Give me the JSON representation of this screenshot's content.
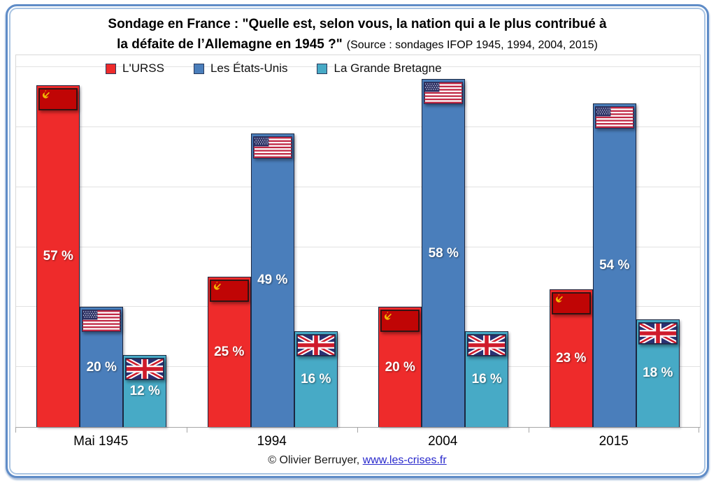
{
  "title": {
    "line1": "Sondage en France : \"Quelle est, selon vous, la nation qui a le plus contribué à",
    "line2": "la défaite de l’Allemagne en 1945 ?\"",
    "source": "(Source : sondages IFOP 1945, 1994, 2004, 2015)"
  },
  "legend": {
    "items": [
      {
        "label": "L'URSS",
        "color": "#ee2b2b"
      },
      {
        "label": "Les États-Unis",
        "color": "#4a7ebb"
      },
      {
        "label": "La Grande Bretagne",
        "color": "#47aac6"
      }
    ]
  },
  "colors": {
    "urss": "#ee2b2b",
    "usa": "#4a7ebb",
    "gb": "#47aac6",
    "bar_border": "#1c2740",
    "gridline": "#e2e2e2",
    "axis": "#a6a6a6",
    "frame_border": "#5f8cc7",
    "link": "#2929cc"
  },
  "plot": {
    "groups": [
      {
        "category": "Mai 1945",
        "bars": [
          {
            "series": "L'URSS",
            "value": 57,
            "label": "57 %"
          },
          {
            "series": "Les États-Unis",
            "value": 20,
            "label": "20 %"
          },
          {
            "series": "La Grande Bretagne",
            "value": 12,
            "label": "12 %"
          }
        ]
      },
      {
        "category": "1994",
        "bars": [
          {
            "series": "L'URSS",
            "value": 25,
            "label": "25 %"
          },
          {
            "series": "Les États-Unis",
            "value": 49,
            "label": "49 %"
          },
          {
            "series": "La Grande Bretagne",
            "value": 16,
            "label": "16 %"
          }
        ]
      },
      {
        "category": "2004",
        "bars": [
          {
            "series": "L'URSS",
            "value": 20,
            "label": "20 %"
          },
          {
            "series": "Les États-Unis",
            "value": 58,
            "label": "58 %"
          },
          {
            "series": "La Grande Bretagne",
            "value": 16,
            "label": "16 %"
          }
        ]
      },
      {
        "category": "2015",
        "bars": [
          {
            "series": "L'URSS",
            "value": 23,
            "label": "23 %"
          },
          {
            "series": "Les États-Unis",
            "value": 54,
            "label": "54 %"
          },
          {
            "series": "La Grande Bretagne",
            "value": 18,
            "label": "18 %"
          }
        ]
      }
    ]
  },
  "footer": {
    "copyright": "© Olivier Berruyer,",
    "link": "www.les-crises.fr"
  },
  "chart_data": {
    "type": "bar",
    "title": "Sondage en France : \"Quelle est, selon vous, la nation qui a le plus contribué à la défaite de l’Allemagne en 1945 ?\"",
    "subtitle": "(Source : sondages IFOP 1945, 1994, 2004, 2015)",
    "categories": [
      "Mai 1945",
      "1994",
      "2004",
      "2015"
    ],
    "series": [
      {
        "name": "L'URSS",
        "color": "#ee2b2b",
        "flag": "ussr",
        "values": [
          57,
          25,
          20,
          23
        ]
      },
      {
        "name": "Les États-Unis",
        "color": "#4a7ebb",
        "flag": "usa",
        "values": [
          20,
          49,
          58,
          54
        ]
      },
      {
        "name": "La Grande Bretagne",
        "color": "#47aac6",
        "flag": "uk",
        "values": [
          12,
          16,
          16,
          18
        ]
      }
    ],
    "xlabel": "",
    "ylabel": "",
    "ylim": [
      0,
      62
    ],
    "gridlines": [
      10,
      20,
      30,
      40,
      50,
      60
    ],
    "grid": "horizontal",
    "legend_position": "top-left",
    "value_label_format": "{value} %",
    "value_label_position": "center of bar, white bold",
    "bar_top_icons": "national flag of each series"
  }
}
